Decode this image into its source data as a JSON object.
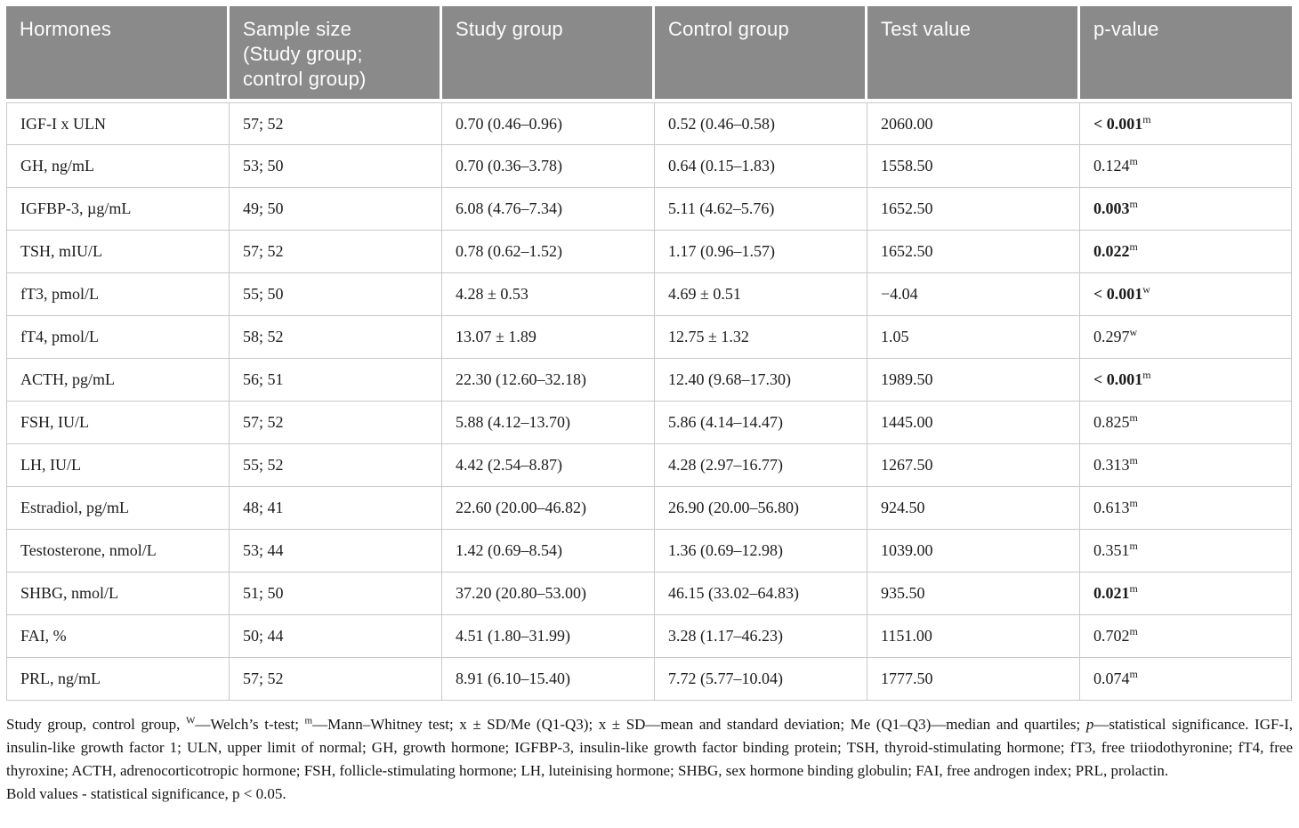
{
  "colors": {
    "header_bg": "#8a8a8a",
    "header_text": "#ffffff",
    "row_border": "#c9c9c9",
    "body_text": "#1c1c1c"
  },
  "table": {
    "columns": [
      "Hormones",
      "Sample size\n(Study group;\ncontrol group)",
      "Study group",
      "Control group",
      "Test value",
      "p-value"
    ],
    "rows": [
      {
        "hormone": "IGF-I x ULN",
        "sample": "57; 52",
        "study": "0.70 (0.46–0.96)",
        "control": "0.52 (0.46–0.58)",
        "test": "2060.00",
        "p": "< 0.001",
        "p_sup": "m",
        "p_bold": true
      },
      {
        "hormone": "GH, ng/mL",
        "sample": "53; 50",
        "study": "0.70 (0.36–3.78)",
        "control": "0.64 (0.15–1.83)",
        "test": "1558.50",
        "p": "0.124",
        "p_sup": "m",
        "p_bold": false
      },
      {
        "hormone": "IGFBP-3, µg/mL",
        "sample": "49; 50",
        "study": "6.08 (4.76–7.34)",
        "control": "5.11 (4.62–5.76)",
        "test": "1652.50",
        "p": "0.003",
        "p_sup": "m",
        "p_bold": true
      },
      {
        "hormone": "TSH, mIU/L",
        "sample": "57; 52",
        "study": "0.78 (0.62–1.52)",
        "control": "1.17 (0.96–1.57)",
        "test": "1652.50",
        "p": "0.022",
        "p_sup": "m",
        "p_bold": true
      },
      {
        "hormone": "fT3, pmol/L",
        "sample": "55; 50",
        "study": "4.28 ± 0.53",
        "control": "4.69 ± 0.51",
        "test": "−4.04",
        "p": "< 0.001",
        "p_sup": "w",
        "p_bold": true
      },
      {
        "hormone": "fT4, pmol/L",
        "sample": "58; 52",
        "study": "13.07 ± 1.89",
        "control": "12.75 ± 1.32",
        "test": "1.05",
        "p": "0.297",
        "p_sup": "w",
        "p_bold": false
      },
      {
        "hormone": "ACTH, pg/mL",
        "sample": "56; 51",
        "study": "22.30 (12.60–32.18)",
        "control": "12.40 (9.68–17.30)",
        "test": "1989.50",
        "p": "< 0.001",
        "p_sup": "m",
        "p_bold": true
      },
      {
        "hormone": "FSH, IU/L",
        "sample": "57; 52",
        "study": "5.88 (4.12–13.70)",
        "control": "5.86 (4.14–14.47)",
        "test": "1445.00",
        "p": "0.825",
        "p_sup": "m",
        "p_bold": false
      },
      {
        "hormone": "LH, IU/L",
        "sample": "55; 52",
        "study": "4.42 (2.54–8.87)",
        "control": "4.28 (2.97–16.77)",
        "test": "1267.50",
        "p": "0.313",
        "p_sup": "m",
        "p_bold": false
      },
      {
        "hormone": "Estradiol, pg/mL",
        "sample": "48; 41",
        "study": "22.60 (20.00–46.82)",
        "control": "26.90 (20.00–56.80)",
        "test": "924.50",
        "p": "0.613",
        "p_sup": "m",
        "p_bold": false
      },
      {
        "hormone": "Testosterone, nmol/L",
        "sample": "53; 44",
        "study": "1.42 (0.69–8.54)",
        "control": "1.36 (0.69–12.98)",
        "test": "1039.00",
        "p": "0.351",
        "p_sup": "m",
        "p_bold": false
      },
      {
        "hormone": "SHBG, nmol/L",
        "sample": "51; 50",
        "study": "37.20 (20.80–53.00)",
        "control": "46.15 (33.02–64.83)",
        "test": "935.50",
        "p": "0.021",
        "p_sup": "m",
        "p_bold": true
      },
      {
        "hormone": "FAI, %",
        "sample": "50; 44",
        "study": "4.51 (1.80–31.99)",
        "control": "3.28 (1.17–46.23)",
        "test": "1151.00",
        "p": "0.702",
        "p_sup": "m",
        "p_bold": false
      },
      {
        "hormone": "PRL, ng/mL",
        "sample": "57; 52",
        "study": "8.91 (6.10–15.40)",
        "control": "7.72 (5.77–10.04)",
        "test": "1777.50",
        "p": "0.074",
        "p_sup": "m",
        "p_bold": false
      }
    ]
  },
  "footnotes": {
    "main_segments": [
      {
        "t": "Study group, control group, "
      },
      {
        "sup": "W"
      },
      {
        "t": "—Welch’s t-test; "
      },
      {
        "sup": "m"
      },
      {
        "t": "—Mann–Whitney test; x ± SD/Me (Q1-Q3); x ± SD—mean and standard deviation; Me (Q1–Q3)—median and quartiles; "
      },
      {
        "i": "p"
      },
      {
        "t": "—statistical significance. IGF-I, insulin-like growth factor 1; ULN, upper limit of normal; GH, growth hormone; IGFBP-3, insulin-like growth factor binding protein; TSH, thyroid-stimulating hormone; fT3, free triiodothyronine; fT4, free thyroxine; ACTH, adrenocorticotropic hormone; FSH, follicle-stimulating hormone; LH, luteinising hormone; SHBG, sex hormone binding globulin; FAI, free androgen index; PRL, prolactin."
      }
    ],
    "bold_note": "Bold values - statistical significance, p < 0.05."
  }
}
